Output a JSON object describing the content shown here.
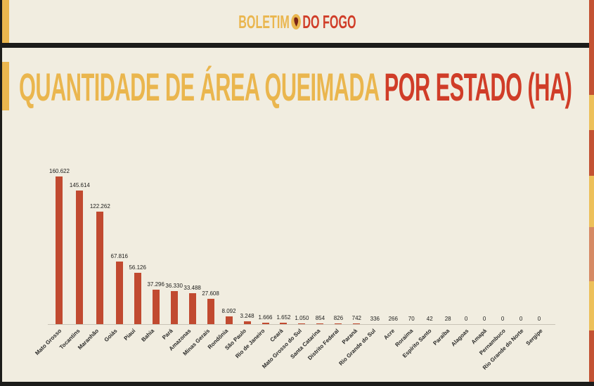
{
  "header": {
    "logo_part1": "BOLETIM",
    "logo_part2": "DO FOGO",
    "logo_icon": "south-america-map-icon"
  },
  "title": {
    "part1": "QUANTIDADE DE ÁREA QUEIMADA ",
    "part2": "POR ESTADO (HA)"
  },
  "colors": {
    "background": "#f1ede0",
    "gold_accent": "#eab64e",
    "red_accent": "#d03d28",
    "bar_red": "#c14a30",
    "dark_band": "#1c1c1a",
    "stripe_salmon": "#d68a64"
  },
  "chart_data": {
    "type": "bar",
    "title": "Quantidade de área queimada por estado (ha)",
    "xlabel": "",
    "ylabel": "",
    "ylim": [
      0,
      170000
    ],
    "grid": false,
    "legend": "none",
    "bar_color": "#c14a30",
    "categories": [
      "Mato Grosso",
      "Tocantins",
      "Maranhão",
      "Goiás",
      "Piauí",
      "Bahia",
      "Pará",
      "Amazonas",
      "Minas Gerais",
      "Rondônia",
      "São Paulo",
      "Rio de Janeiro",
      "Ceará",
      "Mato Grosso do Sul",
      "Santa Catarina",
      "Distrito Federal",
      "Paraná",
      "Rio Grande do Sul",
      "Acre",
      "Roraima",
      "Espírito Santo",
      "Paraíba",
      "Alagoas",
      "Amapá",
      "Pernambuco",
      "Rio Grande do Norte",
      "Sergipe"
    ],
    "values": [
      160622,
      145614,
      122262,
      67816,
      56126,
      37296,
      36330,
      33488,
      27608,
      8092,
      3248,
      1666,
      1652,
      1050,
      854,
      826,
      742,
      336,
      266,
      70,
      42,
      28,
      0,
      0,
      0,
      0,
      0
    ],
    "value_labels": [
      "160.622",
      "145.614",
      "122.262",
      "67.816",
      "56.126",
      "37.296",
      "36.330",
      "33.488",
      "27.608",
      "8.092",
      "3.248",
      "1.666",
      "1.652",
      "1.050",
      "854",
      "826",
      "742",
      "336",
      "266",
      "70",
      "42",
      "28",
      "0",
      "0",
      "0",
      "0",
      "0"
    ]
  }
}
